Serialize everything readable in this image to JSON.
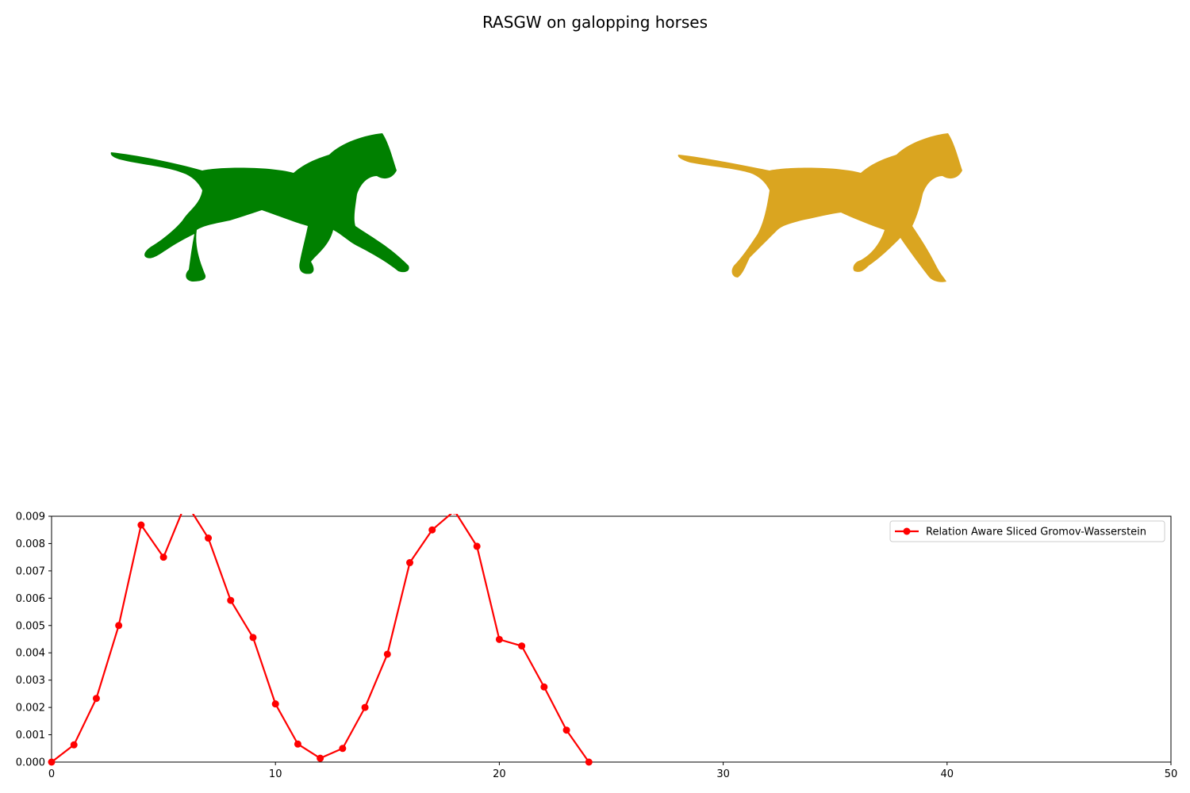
{
  "figure": {
    "title": "RASGW on galopping horses",
    "source_color": "#008000",
    "target_color": "#DAA520"
  },
  "chart_data": {
    "type": "line",
    "title": "",
    "xlabel": "",
    "ylabel": "",
    "xlim": [
      0,
      50
    ],
    "ylim": [
      0,
      0.009
    ],
    "grid": false,
    "legend_position": "top-right",
    "x_ticks": [
      0,
      10,
      20,
      30,
      40,
      50
    ],
    "x_tick_labels": [
      "0",
      "10",
      "20",
      "30",
      "40",
      "50"
    ],
    "y_ticks": [
      0,
      0.001,
      0.002,
      0.003,
      0.004,
      0.005,
      0.006,
      0.007,
      0.008,
      0.009
    ],
    "y_tick_labels": [
      "0.000",
      "0.001",
      "0.002",
      "0.003",
      "0.004",
      "0.005",
      "0.006",
      "0.007",
      "0.008",
      "0.009"
    ],
    "series": [
      {
        "name": "Relation Aware Sliced Gromov-Wasserstein",
        "color": "#FF0000",
        "marker": "circle",
        "x": [
          0,
          1,
          2,
          3,
          4,
          5,
          6,
          7,
          8,
          9,
          10,
          11,
          12,
          13,
          14,
          15,
          16,
          17,
          18,
          19,
          20,
          21,
          22,
          23,
          24
        ],
        "y": [
          0.0,
          0.00063,
          0.00233,
          0.005,
          0.00868,
          0.0075,
          0.0095,
          0.0082,
          0.00592,
          0.00456,
          0.00213,
          0.00066,
          0.00014,
          0.0005,
          0.002,
          0.00395,
          0.0073,
          0.0085,
          0.0092,
          0.0079,
          0.00449,
          0.00425,
          0.00275,
          0.00117,
          0.0
        ]
      }
    ]
  }
}
